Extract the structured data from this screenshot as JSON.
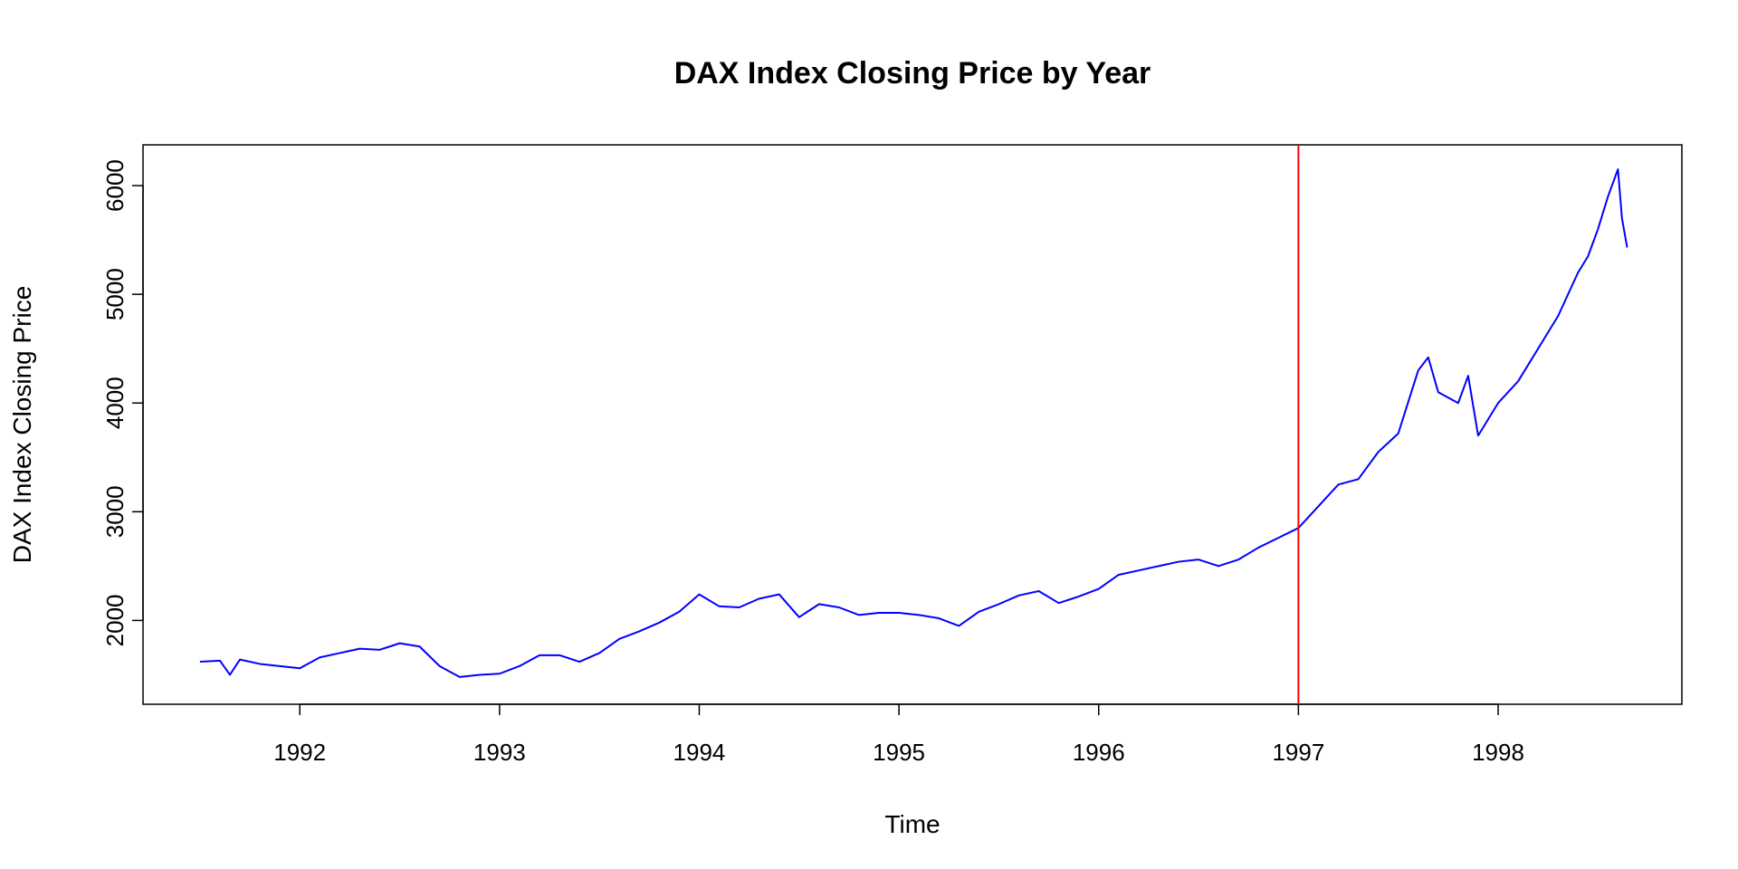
{
  "chart_data": {
    "type": "line",
    "title": "DAX Index Closing Price by Year",
    "x_label": "Time",
    "y_label": "DAX Index Closing Price",
    "color": "blue",
    "x": [
      1991.5,
      1991.6,
      1991.65,
      1991.7,
      1991.8,
      1991.9,
      1992.0,
      1992.1,
      1992.2,
      1992.3,
      1992.4,
      1992.5,
      1992.6,
      1992.7,
      1992.8,
      1992.9,
      1993.0,
      1993.1,
      1993.2,
      1993.3,
      1993.4,
      1993.5,
      1993.6,
      1993.7,
      1993.8,
      1993.9,
      1994.0,
      1994.1,
      1994.2,
      1994.3,
      1994.4,
      1994.5,
      1994.6,
      1994.7,
      1994.8,
      1994.9,
      1995.0,
      1995.1,
      1995.2,
      1995.3,
      1995.4,
      1995.5,
      1995.6,
      1995.7,
      1995.8,
      1995.9,
      1996.0,
      1996.1,
      1996.2,
      1996.3,
      1996.4,
      1996.5,
      1996.6,
      1996.7,
      1996.8,
      1996.9,
      1997.0,
      1997.1,
      1997.2,
      1997.3,
      1997.4,
      1997.5,
      1997.6,
      1997.65,
      1997.7,
      1997.8,
      1997.85,
      1997.9,
      1998.0,
      1998.1,
      1998.2,
      1998.3,
      1998.4,
      1998.45,
      1998.5,
      1998.55,
      1998.6,
      1998.62,
      1998.646
    ],
    "values": [
      1620,
      1630,
      1500,
      1640,
      1600,
      1580,
      1560,
      1660,
      1700,
      1740,
      1730,
      1790,
      1760,
      1580,
      1480,
      1500,
      1510,
      1580,
      1680,
      1680,
      1620,
      1700,
      1830,
      1900,
      1980,
      2080,
      2240,
      2130,
      2120,
      2200,
      2240,
      2030,
      2150,
      2120,
      2050,
      2070,
      2070,
      2050,
      2020,
      1950,
      2080,
      2150,
      2230,
      2270,
      2160,
      2220,
      2290,
      2420,
      2460,
      2500,
      2540,
      2560,
      2500,
      2560,
      2670,
      2760,
      2850,
      3050,
      3250,
      3300,
      3550,
      3720,
      4300,
      4420,
      4100,
      4000,
      4250,
      3700,
      4000,
      4200,
      4500,
      4800,
      5200,
      5350,
      5600,
      5900,
      6150,
      5700,
      5430
    ],
    "xlim": [
      1991.215,
      1998.92
    ],
    "ylim": [
      1229,
      6375
    ],
    "xticks": [
      1992,
      1993,
      1994,
      1995,
      1996,
      1997,
      1998
    ],
    "yticks": [
      2000,
      3000,
      4000,
      5000,
      6000
    ],
    "vline": {
      "x": 1997,
      "color": "red"
    }
  }
}
